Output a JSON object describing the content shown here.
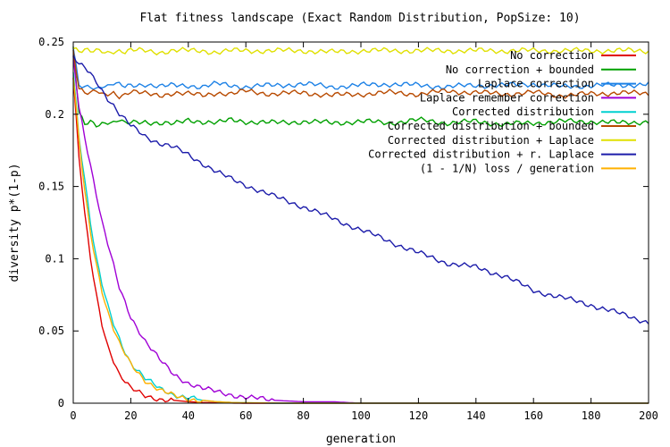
{
  "chart_data": {
    "type": "line",
    "title": "Flat fitness landscape (Exact Random Distribution, PopSize: 10)",
    "xlabel": "generation",
    "ylabel": "diversity p*(1-p)",
    "xlim": [
      0,
      200
    ],
    "ylim": [
      0,
      0.25
    ],
    "xticks": [
      0,
      20,
      40,
      60,
      80,
      100,
      120,
      140,
      160,
      180,
      200
    ],
    "yticks": [
      0,
      0.05,
      0.1,
      0.15,
      0.2,
      0.25
    ],
    "xtick_labels": [
      "0",
      "20",
      "40",
      "60",
      "80",
      "100",
      "120",
      "140",
      "160",
      "180",
      "200"
    ],
    "ytick_labels": [
      "0",
      "0.05",
      "0.1",
      "0.15",
      "0.2",
      "0.25"
    ],
    "grid": false,
    "legend_position": "top-right",
    "x": [
      0,
      2,
      4,
      6,
      8,
      10,
      12,
      14,
      16,
      18,
      20,
      25,
      30,
      35,
      40,
      45,
      50,
      55,
      60,
      70,
      80,
      90,
      100,
      110,
      120,
      130,
      140,
      150,
      160,
      170,
      180,
      190,
      200
    ],
    "series": [
      {
        "name": "No correction",
        "color": "#e00000",
        "values": [
          0.225,
          0.17,
          0.13,
          0.1,
          0.075,
          0.055,
          0.04,
          0.03,
          0.02,
          0.015,
          0.01,
          0.005,
          0.003,
          0.002,
          0.001,
          0.0005,
          0.0003,
          0.0001,
          0,
          0,
          0,
          0,
          0,
          0,
          0,
          0,
          0,
          0,
          0,
          0,
          0,
          0,
          0
        ]
      },
      {
        "name": "No correction + bounded",
        "color": "#00a000",
        "values": [
          0.246,
          0.2,
          0.193,
          0.195,
          0.193,
          0.194,
          0.195,
          0.194,
          0.196,
          0.193,
          0.194,
          0.195,
          0.194,
          0.193,
          0.196,
          0.195,
          0.194,
          0.196,
          0.195,
          0.194,
          0.195,
          0.194,
          0.195,
          0.194,
          0.196,
          0.194,
          0.195,
          0.193,
          0.194,
          0.195,
          0.195,
          0.194,
          0.195
        ]
      },
      {
        "name": "Laplace correction",
        "color": "#1e82e6",
        "values": [
          0.245,
          0.22,
          0.219,
          0.22,
          0.218,
          0.22,
          0.219,
          0.221,
          0.22,
          0.219,
          0.22,
          0.221,
          0.219,
          0.22,
          0.22,
          0.219,
          0.221,
          0.22,
          0.219,
          0.22,
          0.221,
          0.219,
          0.22,
          0.221,
          0.22,
          0.219,
          0.22,
          0.22,
          0.221,
          0.219,
          0.22,
          0.22,
          0.221
        ]
      },
      {
        "name": "Laplace remember correction",
        "color": "#a000d6",
        "values": [
          0.24,
          0.205,
          0.185,
          0.165,
          0.145,
          0.125,
          0.11,
          0.095,
          0.08,
          0.07,
          0.06,
          0.043,
          0.03,
          0.02,
          0.014,
          0.01,
          0.008,
          0.006,
          0.004,
          0.002,
          0.001,
          0.001,
          0,
          0,
          0,
          0,
          0,
          0,
          0,
          0,
          0,
          0,
          0
        ]
      },
      {
        "name": "Corrected distribution",
        "color": "#00d0d0",
        "values": [
          0.23,
          0.185,
          0.155,
          0.125,
          0.1,
          0.082,
          0.067,
          0.055,
          0.045,
          0.036,
          0.028,
          0.017,
          0.01,
          0.006,
          0.004,
          0.002,
          0.001,
          0.0005,
          0.0003,
          0,
          0,
          0,
          0,
          0,
          0,
          0,
          0,
          0,
          0,
          0,
          0,
          0,
          0
        ]
      },
      {
        "name": "Corrected distribution + bounded",
        "color": "#b84a00",
        "values": [
          0.245,
          0.218,
          0.215,
          0.214,
          0.216,
          0.213,
          0.214,
          0.215,
          0.213,
          0.214,
          0.216,
          0.214,
          0.213,
          0.215,
          0.214,
          0.213,
          0.215,
          0.214,
          0.216,
          0.214,
          0.215,
          0.213,
          0.214,
          0.215,
          0.214,
          0.216,
          0.215,
          0.214,
          0.215,
          0.213,
          0.214,
          0.215,
          0.214
        ]
      },
      {
        "name": "Corrected distribution + Laplace",
        "color": "#e0e000",
        "values": [
          0.246,
          0.243,
          0.244,
          0.243,
          0.244,
          0.244,
          0.243,
          0.244,
          0.244,
          0.243,
          0.244,
          0.244,
          0.243,
          0.244,
          0.244,
          0.244,
          0.243,
          0.244,
          0.244,
          0.244,
          0.244,
          0.243,
          0.244,
          0.244,
          0.244,
          0.244,
          0.244,
          0.244,
          0.244,
          0.244,
          0.244,
          0.244,
          0.244
        ]
      },
      {
        "name": "Corrected distribution + r. Laplace",
        "color": "#1c1caa",
        "values": [
          0.24,
          0.234,
          0.232,
          0.228,
          0.223,
          0.217,
          0.211,
          0.206,
          0.2,
          0.196,
          0.192,
          0.185,
          0.18,
          0.177,
          0.172,
          0.166,
          0.16,
          0.155,
          0.151,
          0.143,
          0.136,
          0.128,
          0.12,
          0.112,
          0.104,
          0.097,
          0.094,
          0.088,
          0.078,
          0.073,
          0.068,
          0.062,
          0.056
        ]
      },
      {
        "name": "(1 - 1/N) loss / generation",
        "color": "#ffb000",
        "values": [
          0.225,
          0.182,
          0.147,
          0.119,
          0.097,
          0.078,
          0.063,
          0.051,
          0.041,
          0.034,
          0.027,
          0.016,
          0.009,
          0.005,
          0.003,
          0.002,
          0.001,
          0.0005,
          0.0003,
          0.0001,
          0,
          0,
          0,
          0,
          0,
          0,
          0,
          0,
          0,
          0,
          0,
          0,
          0
        ]
      }
    ]
  }
}
